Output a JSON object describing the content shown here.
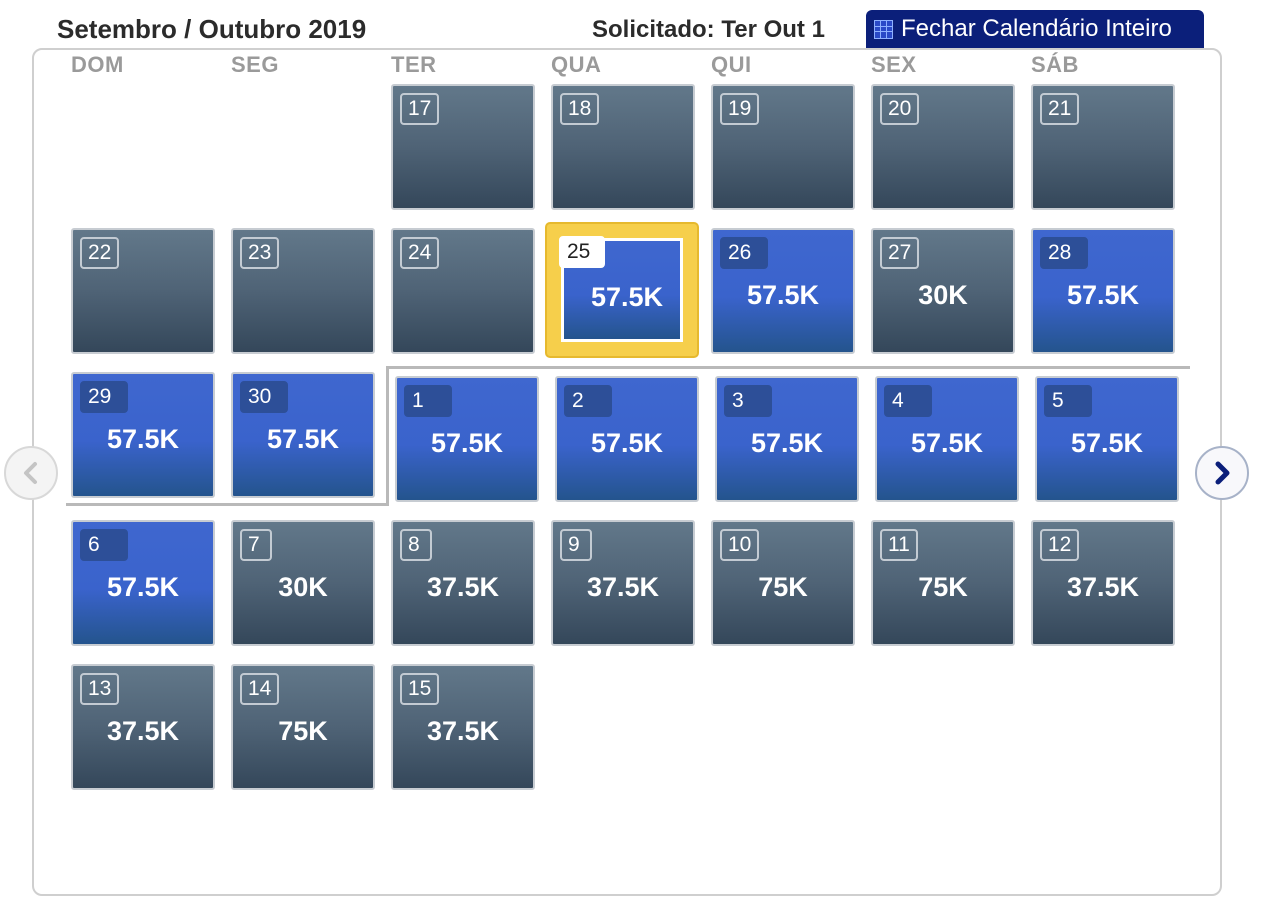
{
  "header": {
    "title": "Setembro / Outubro 2019",
    "requested": "Solicitado: Ter Out 1",
    "close_button": "Fechar Calendário Inteiro"
  },
  "weekdays": [
    "DOM",
    "SEG",
    "TER",
    "QUA",
    "QUI",
    "SEX",
    "SÁB"
  ],
  "calendar": {
    "days": [
      {
        "day": "17",
        "price": "",
        "type": "gray"
      },
      {
        "day": "18",
        "price": "",
        "type": "gray"
      },
      {
        "day": "19",
        "price": "",
        "type": "gray"
      },
      {
        "day": "20",
        "price": "",
        "type": "gray"
      },
      {
        "day": "21",
        "price": "",
        "type": "gray"
      },
      {
        "day": "22",
        "price": "",
        "type": "gray"
      },
      {
        "day": "23",
        "price": "",
        "type": "gray"
      },
      {
        "day": "24",
        "price": "",
        "type": "gray"
      },
      {
        "day": "25",
        "price": "57.5K",
        "type": "selected"
      },
      {
        "day": "26",
        "price": "57.5K",
        "type": "blue"
      },
      {
        "day": "27",
        "price": "30K",
        "type": "gray"
      },
      {
        "day": "28",
        "price": "57.5K",
        "type": "blue"
      },
      {
        "day": "29",
        "price": "57.5K",
        "type": "blue"
      },
      {
        "day": "30",
        "price": "57.5K",
        "type": "blue"
      },
      {
        "day": "1",
        "price": "57.5K",
        "type": "blue"
      },
      {
        "day": "2",
        "price": "57.5K",
        "type": "blue"
      },
      {
        "day": "3",
        "price": "57.5K",
        "type": "blue"
      },
      {
        "day": "4",
        "price": "57.5K",
        "type": "blue"
      },
      {
        "day": "5",
        "price": "57.5K",
        "type": "blue"
      },
      {
        "day": "6",
        "price": "57.5K",
        "type": "blue"
      },
      {
        "day": "7",
        "price": "30K",
        "type": "gray"
      },
      {
        "day": "8",
        "price": "37.5K",
        "type": "gray"
      },
      {
        "day": "9",
        "price": "37.5K",
        "type": "gray"
      },
      {
        "day": "10",
        "price": "75K",
        "type": "gray"
      },
      {
        "day": "11",
        "price": "75K",
        "type": "gray"
      },
      {
        "day": "12",
        "price": "37.5K",
        "type": "gray"
      },
      {
        "day": "13",
        "price": "37.5K",
        "type": "gray"
      },
      {
        "day": "14",
        "price": "75K",
        "type": "gray"
      },
      {
        "day": "15",
        "price": "37.5K",
        "type": "gray"
      }
    ]
  },
  "navigation": {
    "prev_icon": "chevron-left-icon",
    "next_icon": "chevron-right-icon"
  },
  "colors": {
    "accent": "#0b1f7a",
    "available_blue": "#3a63cc",
    "unavailable_gray": "#4f6376",
    "selected_gold": "#f6cf4b"
  }
}
